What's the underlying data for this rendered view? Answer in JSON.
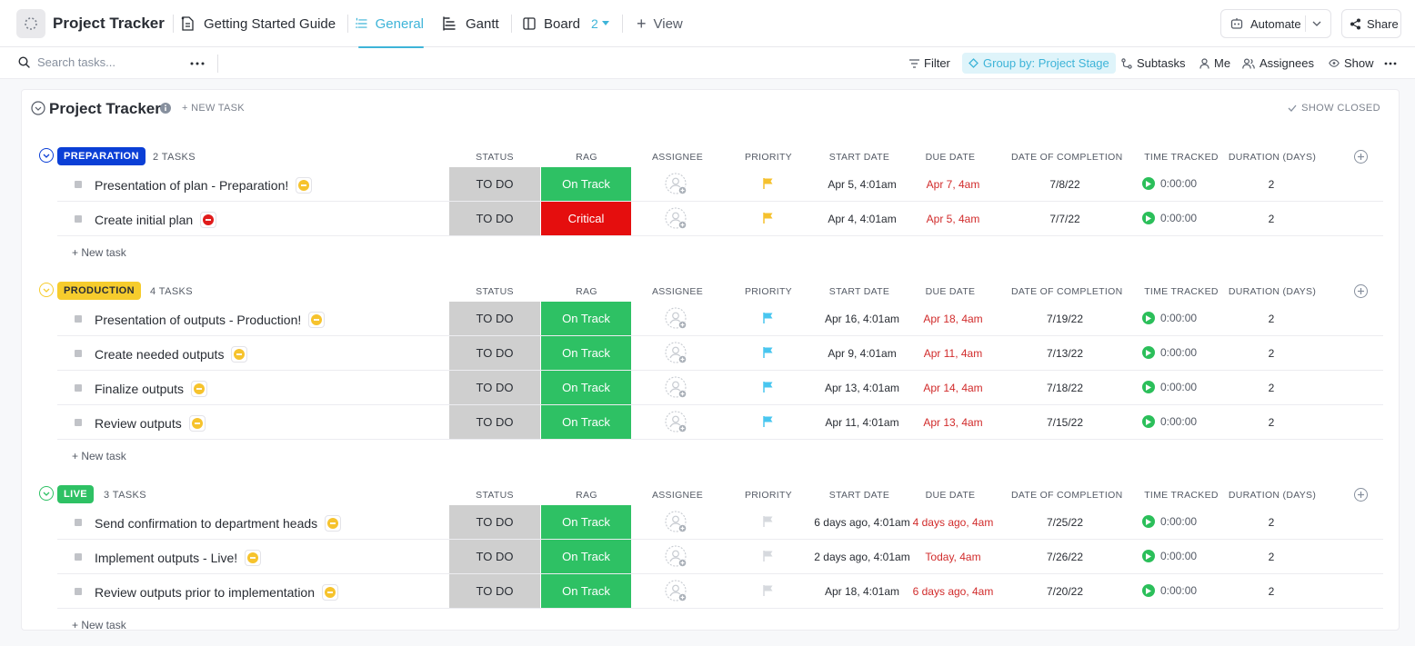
{
  "app": {
    "title": "Project Tracker"
  },
  "views": [
    {
      "label": "Getting Started Guide",
      "icon": "doc-icon"
    },
    {
      "label": "General",
      "icon": "list-icon",
      "active": true
    },
    {
      "label": "Gantt",
      "icon": "gantt-icon"
    },
    {
      "label": "Board",
      "icon": "board-icon",
      "count": "2"
    }
  ],
  "add_view_label": "View",
  "automate_label": "Automate",
  "share_label": "Share",
  "toolbar": {
    "search_placeholder": "Search tasks...",
    "filter": "Filter",
    "group_by": "Group by: Project Stage",
    "subtasks": "Subtasks",
    "me": "Me",
    "assignees": "Assignees",
    "show": "Show"
  },
  "list": {
    "title": "Project Tracker",
    "new_task": "+ NEW TASK",
    "show_closed": "SHOW CLOSED"
  },
  "columns": {
    "status": "STATUS",
    "rag": "RAG",
    "assignee": "ASSIGNEE",
    "priority": "PRIORITY",
    "start_date": "START DATE",
    "due_date": "DUE DATE",
    "completion": "DATE OF COMPLETION",
    "time_tracked": "TIME TRACKED",
    "duration": "DURATION (DAYS)"
  },
  "new_task_row": "+ New task",
  "colors": {
    "accent": "#3eb4d8",
    "on_track": "#2ec164",
    "critical": "#e50e0e",
    "due_red": "#d12b2b",
    "preparation": "#0b3fd6",
    "production": "#f6cc2d",
    "live": "#2ec164"
  },
  "groups": [
    {
      "name": "PREPARATION",
      "count": "2 TASKS",
      "tasks": [
        {
          "name": "Presentation of plan - Preparation!",
          "chip": "minus-yellow",
          "status": "TO DO",
          "rag": "On Track",
          "priority": "yellow",
          "start": "Apr 5, 4:01am",
          "due": "Apr 7, 4am",
          "completion": "7/8/22",
          "time": "0:00:00",
          "duration": "2"
        },
        {
          "name": "Create initial plan",
          "chip": "minus-red",
          "status": "TO DO",
          "rag": "Critical",
          "priority": "yellow",
          "start": "Apr 4, 4:01am",
          "due": "Apr 5, 4am",
          "completion": "7/7/22",
          "time": "0:00:00",
          "duration": "2"
        }
      ]
    },
    {
      "name": "PRODUCTION",
      "count": "4 TASKS",
      "tasks": [
        {
          "name": "Presentation of outputs - Production!",
          "chip": "minus-yellow",
          "status": "TO DO",
          "rag": "On Track",
          "priority": "blue",
          "start": "Apr 16, 4:01am",
          "due": "Apr 18, 4am",
          "completion": "7/19/22",
          "time": "0:00:00",
          "duration": "2"
        },
        {
          "name": "Create needed outputs",
          "chip": "minus-yellow",
          "status": "TO DO",
          "rag": "On Track",
          "priority": "blue",
          "start": "Apr 9, 4:01am",
          "due": "Apr 11, 4am",
          "completion": "7/13/22",
          "time": "0:00:00",
          "duration": "2"
        },
        {
          "name": "Finalize outputs",
          "chip": "minus-yellow",
          "status": "TO DO",
          "rag": "On Track",
          "priority": "blue",
          "start": "Apr 13, 4:01am",
          "due": "Apr 14, 4am",
          "completion": "7/18/22",
          "time": "0:00:00",
          "duration": "2"
        },
        {
          "name": "Review outputs",
          "chip": "minus-yellow",
          "status": "TO DO",
          "rag": "On Track",
          "priority": "blue",
          "start": "Apr 11, 4:01am",
          "due": "Apr 13, 4am",
          "completion": "7/15/22",
          "time": "0:00:00",
          "duration": "2"
        }
      ]
    },
    {
      "name": "LIVE",
      "count": "3 TASKS",
      "tasks": [
        {
          "name": "Send confirmation to department heads",
          "chip": "minus-yellow",
          "status": "TO DO",
          "rag": "On Track",
          "priority": "gray",
          "start": "6 days ago, 4:01am",
          "due": "4 days ago, 4am",
          "completion": "7/25/22",
          "time": "0:00:00",
          "duration": "2"
        },
        {
          "name": "Implement outputs - Live!",
          "chip": "minus-yellow",
          "status": "TO DO",
          "rag": "On Track",
          "priority": "gray",
          "start": "2 days ago, 4:01am",
          "due": "Today, 4am",
          "completion": "7/26/22",
          "time": "0:00:00",
          "duration": "2"
        },
        {
          "name": "Review outputs prior to implementation",
          "chip": "minus-yellow",
          "status": "TO DO",
          "rag": "On Track",
          "priority": "gray",
          "start": "Apr 18, 4:01am",
          "due": "6 days ago, 4am",
          "completion": "7/20/22",
          "time": "0:00:00",
          "duration": "2"
        }
      ]
    }
  ]
}
